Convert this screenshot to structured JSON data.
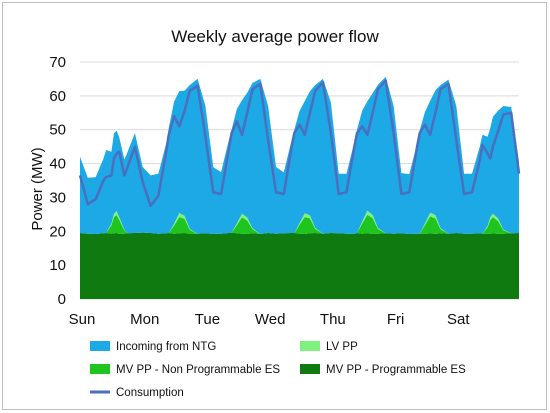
{
  "chart_data": {
    "type": "area",
    "title": "Weekly average power flow",
    "xlabel": "",
    "ylabel": "Power (MW)",
    "ylim": [
      0,
      70
    ],
    "yticks": [
      0,
      10,
      20,
      30,
      40,
      50,
      60,
      70
    ],
    "x_unit": "hours since Sunday 00:00",
    "xlim": [
      0,
      168
    ],
    "x_tick_labels": [
      "Sun",
      "Mon",
      "Tue",
      "Wed",
      "Thu",
      "Fri",
      "Sat"
    ],
    "x_tick_positions": [
      0,
      24,
      48,
      72,
      96,
      120,
      144
    ],
    "grid": true,
    "legend_position": "bottom",
    "x": [
      0,
      3,
      6,
      9,
      10,
      12,
      13,
      14,
      15,
      17,
      18,
      21,
      24,
      27,
      30,
      33,
      34,
      36,
      38,
      40,
      42,
      45,
      48,
      51,
      54,
      57,
      58,
      60,
      62,
      64,
      66,
      69,
      72,
      75,
      78,
      81,
      82,
      84,
      86,
      88,
      90,
      93,
      96,
      99,
      102,
      105,
      106,
      108,
      110,
      112,
      114,
      117,
      120,
      123,
      126,
      129,
      130,
      132,
      134,
      136,
      138,
      141,
      144,
      147,
      150,
      153,
      154,
      156,
      157,
      158,
      160,
      162,
      165,
      168
    ],
    "series": [
      {
        "name": "MV PP - Programmable ES",
        "color": "#0f7a0f",
        "values": [
          19.5,
          19.3,
          19.2,
          19.4,
          19.5,
          19.3,
          19.4,
          19.5,
          19.2,
          19.3,
          19.4,
          19.5,
          19.6,
          19.5,
          19.3,
          19.4,
          19.5,
          19.3,
          19.4,
          19.5,
          19.2,
          19.3,
          19.4,
          19.2,
          19.3,
          19.5,
          19.6,
          19.4,
          19.3,
          19.2,
          19.4,
          19.2,
          19.5,
          19.3,
          19.4,
          19.5,
          19.5,
          19.3,
          19.2,
          19.4,
          19.5,
          19.3,
          19.5,
          19.4,
          19.3,
          19.2,
          19.5,
          19.3,
          19.4,
          19.2,
          19.3,
          19.4,
          19.3,
          19.4,
          19.2,
          19.3,
          19.3,
          19.2,
          19.4,
          19.2,
          19.4,
          19.3,
          19.5,
          19.3,
          19.3,
          19.4,
          19.3,
          19.2,
          19.3,
          19.4,
          19.2,
          19.3,
          19.4,
          19.5
        ]
      },
      {
        "name": "MV PP - Non Programmable ES",
        "color": "#1fc41f",
        "values": [
          0,
          0,
          0,
          0,
          0,
          2.5,
          4.8,
          5.3,
          4.2,
          1.0,
          0,
          0,
          0,
          0,
          0,
          0,
          0,
          2.4,
          4.8,
          4.2,
          1.2,
          0,
          0,
          0,
          0,
          0,
          0,
          2.4,
          4.8,
          4.0,
          1.2,
          0,
          0,
          0,
          0,
          0,
          0,
          2.6,
          5.0,
          4.4,
          1.2,
          0,
          0,
          0,
          0,
          0,
          0,
          3.0,
          5.5,
          4.6,
          1.4,
          0,
          0,
          0,
          0,
          0,
          0,
          2.6,
          5.0,
          4.6,
          1.2,
          0,
          0,
          0,
          0,
          0,
          0,
          2.0,
          4.0,
          4.8,
          3.8,
          1.0,
          0,
          0
        ]
      },
      {
        "name": "LV PP",
        "color": "#7ef27e",
        "values": [
          0,
          0,
          0,
          0,
          0,
          0.5,
          1.0,
          1.2,
          0.8,
          0.2,
          0,
          0,
          0,
          0,
          0,
          0,
          0,
          0.5,
          1.2,
          0.9,
          0.3,
          0,
          0,
          0,
          0,
          0,
          0,
          0.5,
          1.1,
          0.9,
          0.3,
          0,
          0,
          0,
          0,
          0,
          0,
          0.5,
          1.1,
          0.9,
          0.3,
          0,
          0,
          0,
          0,
          0,
          0,
          0.6,
          1.2,
          1.0,
          0.3,
          0,
          0,
          0,
          0,
          0,
          0,
          0.5,
          1.1,
          1.0,
          0.3,
          0,
          0,
          0,
          0,
          0,
          0,
          0.4,
          0.9,
          1.0,
          0.8,
          0.2,
          0,
          0
        ]
      },
      {
        "name": "Incoming from NTG",
        "color": "#1ca9e6",
        "values": [
          22.5,
          16.5,
          16.8,
          22.1,
          24.5,
          21.2,
          23.8,
          23.7,
          23.6,
          20.7,
          23.6,
          29.5,
          19.4,
          17.0,
          17.7,
          26.6,
          31.1,
          36.1,
          36.0,
          36.9,
          42.5,
          45.7,
          37.6,
          19.7,
          18.2,
          27.5,
          30.4,
          33.8,
          33.5,
          36.8,
          42.9,
          45.8,
          37.5,
          19.7,
          18.0,
          27.5,
          30.5,
          33.1,
          33.1,
          36.7,
          42.2,
          45.7,
          38.5,
          17.6,
          17.7,
          27.3,
          30.5,
          32.7,
          32.3,
          36.0,
          42.3,
          46.2,
          37.7,
          17.8,
          17.7,
          26.6,
          30.5,
          32.9,
          33.1,
          36.8,
          42.3,
          45.5,
          37.5,
          17.7,
          17.7,
          25.6,
          29.2,
          26.3,
          26.3,
          28.6,
          31.8,
          36.5,
          37.3,
          21.0
        ]
      }
    ],
    "consumption": {
      "name": "Consumption",
      "color": "#4a6fbf",
      "values": [
        36.5,
        28.0,
        29.5,
        35.0,
        36.0,
        36.5,
        41.5,
        43.0,
        43.5,
        36.5,
        38.5,
        45.0,
        34.5,
        27.5,
        30.5,
        43.5,
        48.5,
        54.0,
        51.0,
        55.5,
        61.5,
        63.0,
        48.0,
        31.5,
        31.0,
        44.5,
        49.0,
        52.5,
        48.5,
        55.0,
        62.0,
        63.5,
        47.0,
        31.5,
        31.0,
        45.0,
        49.0,
        51.5,
        48.5,
        55.0,
        61.5,
        64.0,
        49.0,
        31.0,
        31.5,
        45.0,
        49.0,
        51.0,
        48.5,
        55.0,
        62.0,
        64.5,
        49.0,
        31.0,
        31.5,
        45.0,
        49.0,
        51.5,
        48.5,
        55.0,
        62.0,
        63.5,
        47.0,
        31.0,
        31.5,
        41.0,
        45.5,
        43.0,
        41.5,
        45.0,
        49.5,
        54.5,
        55.0,
        37.0
      ]
    }
  },
  "legend": {
    "items": [
      {
        "label": "Incoming from NTG",
        "color": "#1ca9e6",
        "kind": "box"
      },
      {
        "label": "LV PP",
        "color": "#7ef27e",
        "kind": "box"
      },
      {
        "label": "MV PP - Non Programmable ES",
        "color": "#1fc41f",
        "kind": "box"
      },
      {
        "label": "MV PP - Programmable ES",
        "color": "#0f7a0f",
        "kind": "box"
      },
      {
        "label": "Consumption",
        "color": "#4a6fbf",
        "kind": "line"
      }
    ]
  }
}
